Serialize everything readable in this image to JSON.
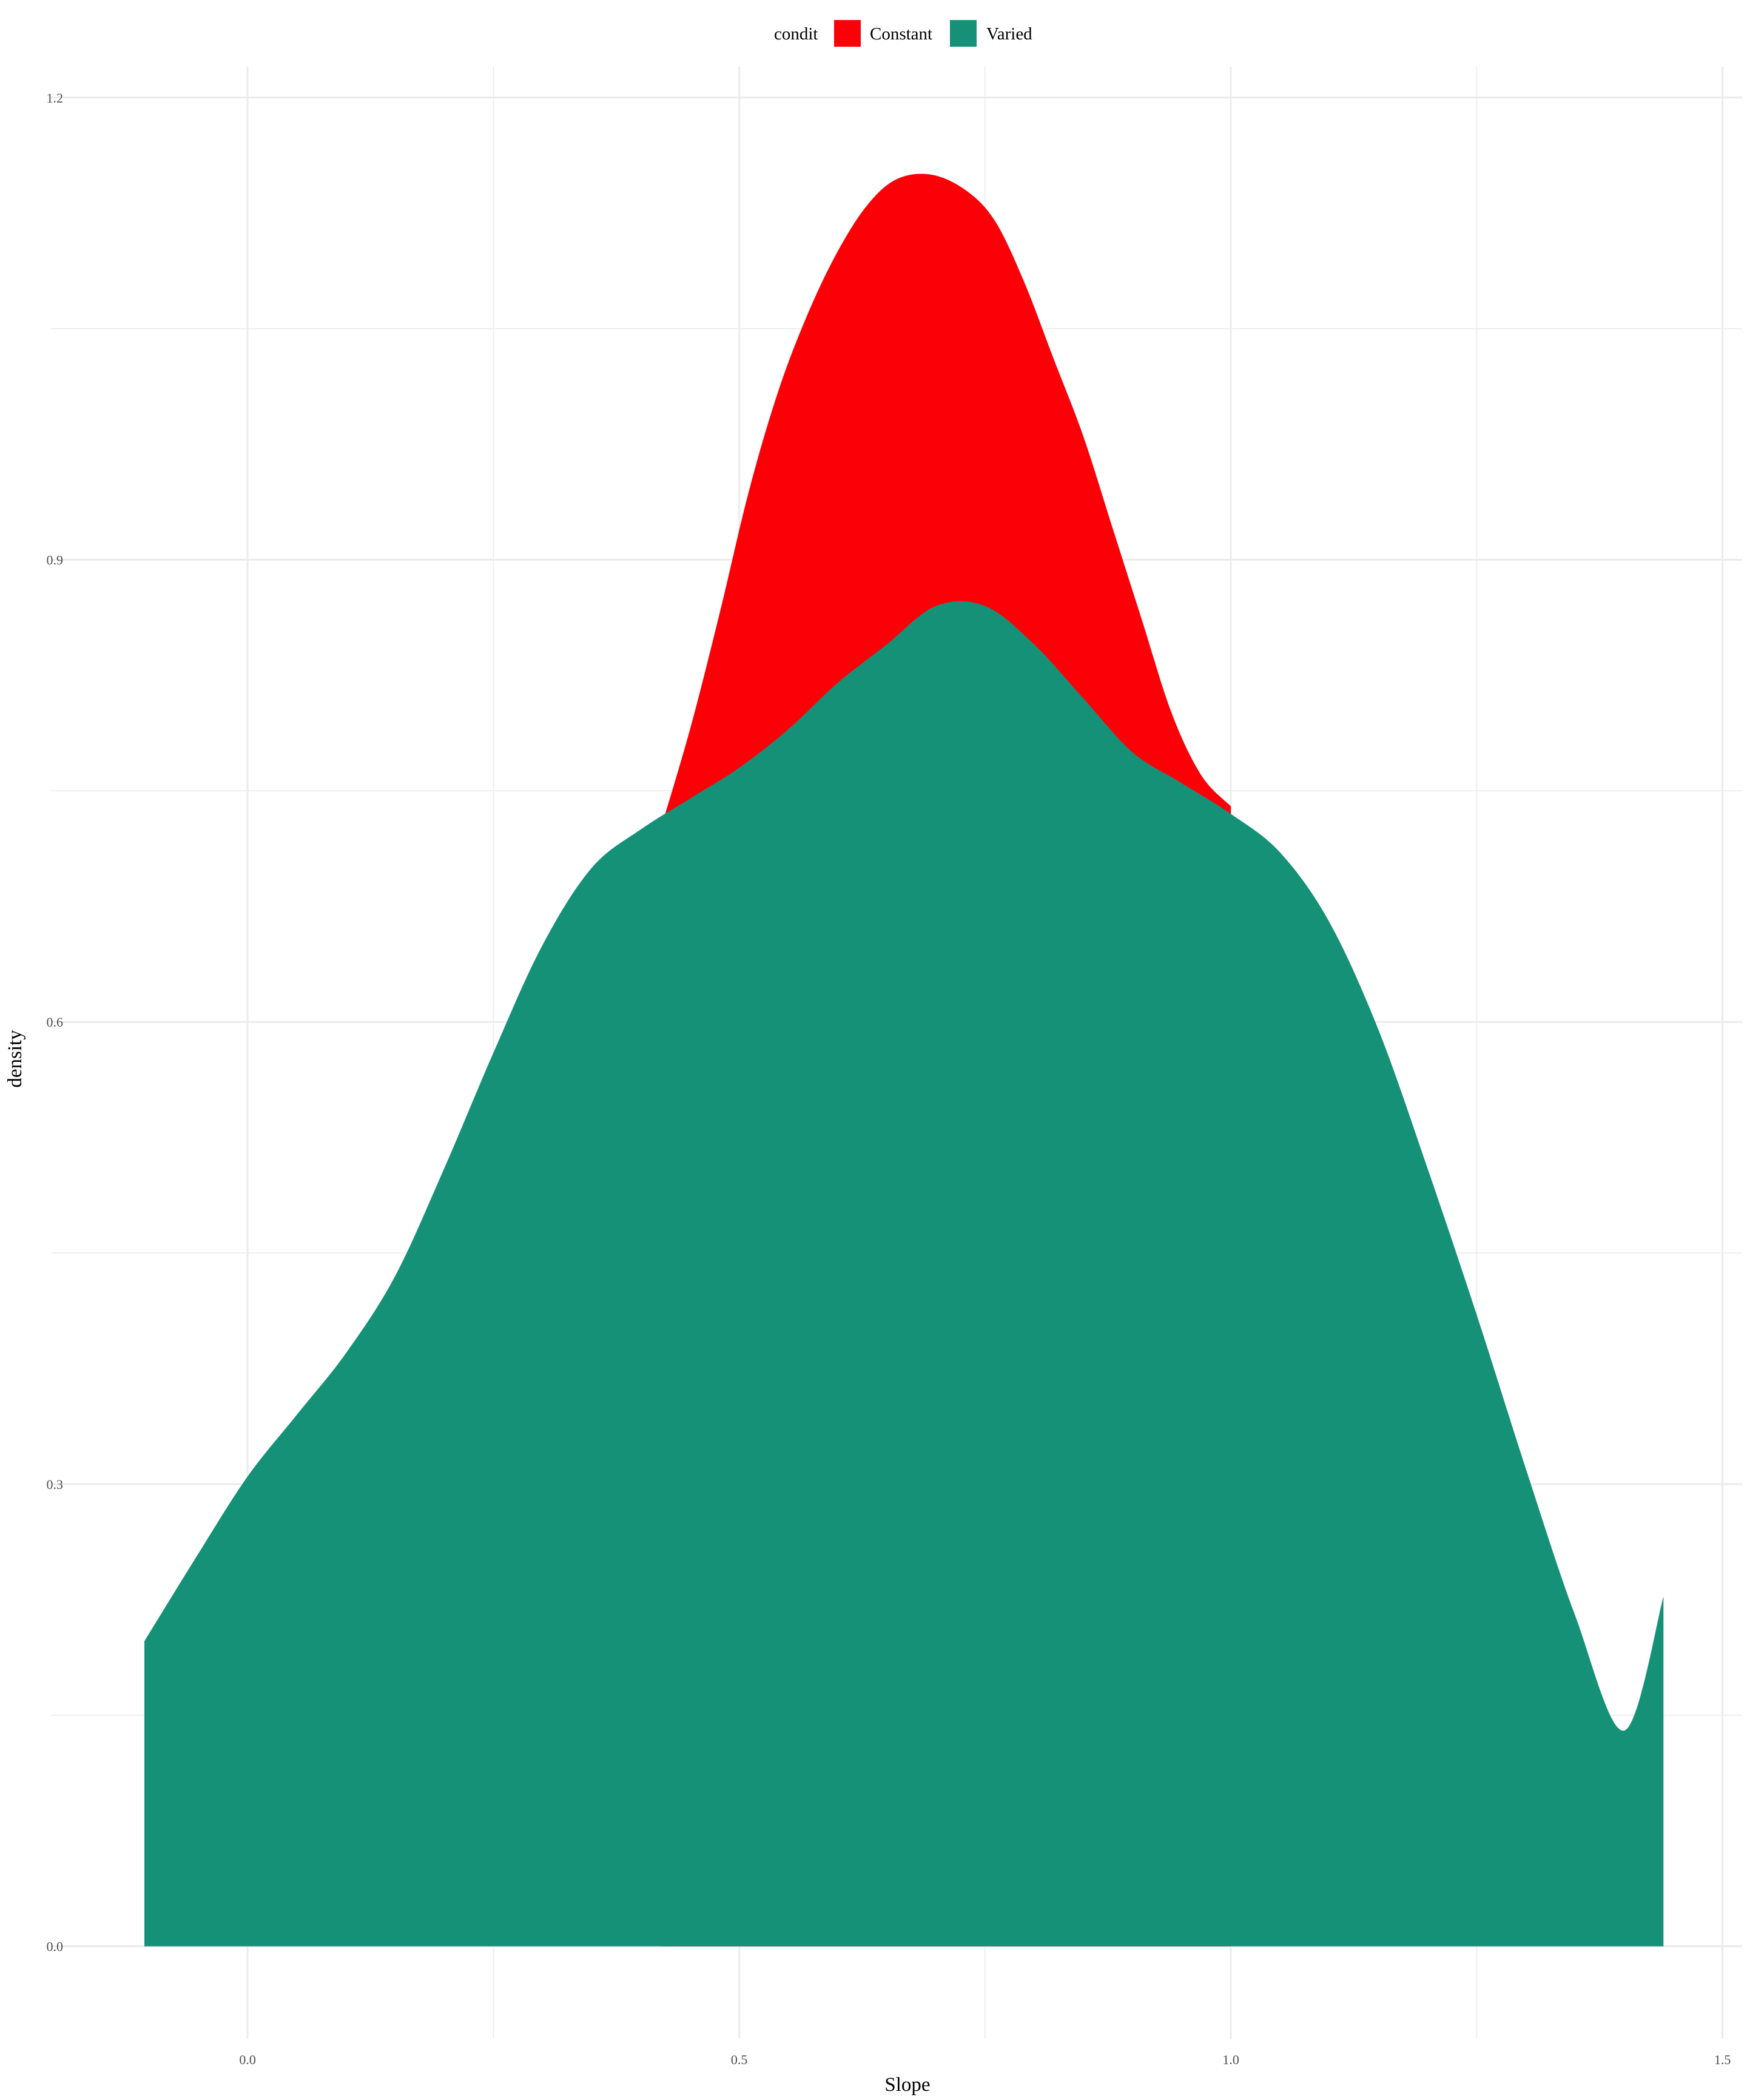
{
  "chart_data": {
    "type": "area",
    "subtype": "density",
    "xlabel": "Slope",
    "ylabel": "density",
    "xlim": [
      -0.2,
      1.52
    ],
    "ylim": [
      -0.06,
      1.22
    ],
    "x_ticks": [
      0.0,
      0.5,
      1.0,
      1.5
    ],
    "x_tick_labels": [
      "0.0",
      "0.5",
      "1.0",
      "1.5"
    ],
    "y_ticks": [
      0.0,
      0.3,
      0.6,
      0.9,
      1.2
    ],
    "y_tick_labels": [
      "0.0",
      "0.3",
      "0.6",
      "0.9",
      "1.2"
    ],
    "grid": true,
    "legend": {
      "title": "condit",
      "position": "top",
      "entries": [
        "Constant",
        "Varied"
      ]
    },
    "series": [
      {
        "name": "Constant",
        "color": "#FC0007",
        "x": [
          0.42,
          0.45,
          0.48,
          0.51,
          0.54,
          0.57,
          0.6,
          0.63,
          0.66,
          0.695,
          0.73,
          0.76,
          0.79,
          0.82,
          0.85,
          0.88,
          0.91,
          0.94,
          0.97,
          1.0
        ],
        "y": [
          0.725,
          0.79,
          0.865,
          0.945,
          1.01,
          1.06,
          1.1,
          1.13,
          1.147,
          1.15,
          1.14,
          1.12,
          1.08,
          1.03,
          0.98,
          0.92,
          0.86,
          0.8,
          0.76,
          0.74
        ]
      },
      {
        "name": "Varied",
        "color": "#159178",
        "x": [
          -0.105,
          -0.05,
          0.0,
          0.05,
          0.1,
          0.15,
          0.2,
          0.25,
          0.3,
          0.35,
          0.4,
          0.45,
          0.5,
          0.55,
          0.6,
          0.65,
          0.7,
          0.75,
          0.8,
          0.85,
          0.9,
          0.95,
          1.0,
          1.05,
          1.1,
          1.15,
          1.2,
          1.25,
          1.3,
          1.35,
          1.4,
          1.44
        ],
        "y": [
          0.198,
          0.255,
          0.305,
          0.345,
          0.385,
          0.435,
          0.505,
          0.58,
          0.65,
          0.7,
          0.725,
          0.745,
          0.765,
          0.79,
          0.82,
          0.845,
          0.87,
          0.87,
          0.845,
          0.81,
          0.775,
          0.755,
          0.735,
          0.71,
          0.665,
          0.595,
          0.505,
          0.41,
          0.31,
          0.215,
          0.14,
          0.227
        ]
      }
    ]
  }
}
